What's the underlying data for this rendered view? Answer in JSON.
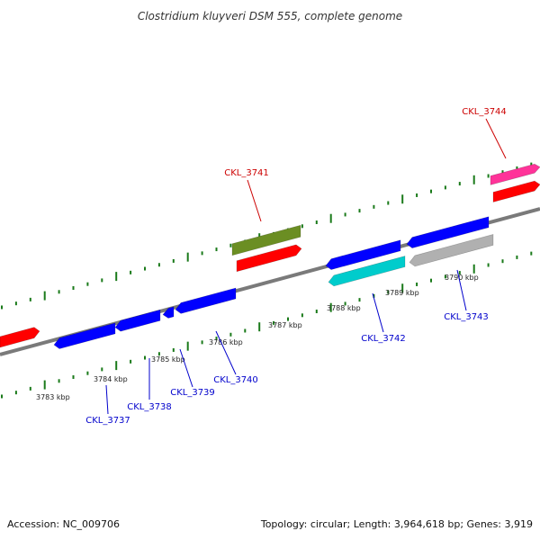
{
  "title": "Clostridium kluyveri DSM 555, complete genome",
  "footer": {
    "accession": "Accession: NC_009706",
    "summary": "Topology: circular; Length: 3,964,618 bp; Genes: 3,919"
  },
  "colors": {
    "backbone": "#808080",
    "tick": "#1a7a1a",
    "forward_label": "#cc0000",
    "reverse_label": "#0000cc"
  },
  "scale_labels": [
    "3783 kbp",
    "3784 kbp",
    "3785 kbp",
    "3786 kbp",
    "3787 kbp",
    "3788 kbp",
    "3789 kbp",
    "3790 kbp"
  ],
  "gene_labels": [
    {
      "text": "CKL_3741",
      "strand": "forward"
    },
    {
      "text": "CKL_3744",
      "strand": "forward"
    },
    {
      "text": "CKL_3737",
      "strand": "reverse"
    },
    {
      "text": "CKL_3738",
      "strand": "reverse"
    },
    {
      "text": "CKL_3739",
      "strand": "reverse"
    },
    {
      "text": "CKL_3740",
      "strand": "reverse"
    },
    {
      "text": "CKL_3742",
      "strand": "reverse"
    },
    {
      "text": "CKL_3743",
      "strand": "reverse"
    }
  ],
  "features": [
    {
      "type": "CDS",
      "strand": "forward",
      "color": "#ff0000"
    },
    {
      "type": "CDS",
      "strand": "reverse",
      "color": "#0000ff"
    },
    {
      "type": "CDS",
      "strand": "reverse",
      "color": "#0000ff"
    },
    {
      "type": "CDS",
      "strand": "reverse",
      "color": "#0000ff"
    },
    {
      "type": "CDS",
      "strand": "reverse",
      "color": "#0000ff"
    },
    {
      "type": "gene",
      "strand": "forward",
      "color": "#6b8e23"
    },
    {
      "type": "CDS",
      "strand": "forward",
      "color": "#ff0000"
    },
    {
      "type": "CDS",
      "strand": "reverse",
      "color": "#0000ff"
    },
    {
      "type": "rRNA",
      "strand": "reverse",
      "color": "#00cccc"
    },
    {
      "type": "CDS",
      "strand": "reverse",
      "color": "#0000ff"
    },
    {
      "type": "pseudo",
      "strand": "reverse",
      "color": "#b0b0b0"
    },
    {
      "type": "tRNA",
      "strand": "forward",
      "color": "#ff3399"
    },
    {
      "type": "CDS",
      "strand": "forward",
      "color": "#ff0000"
    }
  ]
}
